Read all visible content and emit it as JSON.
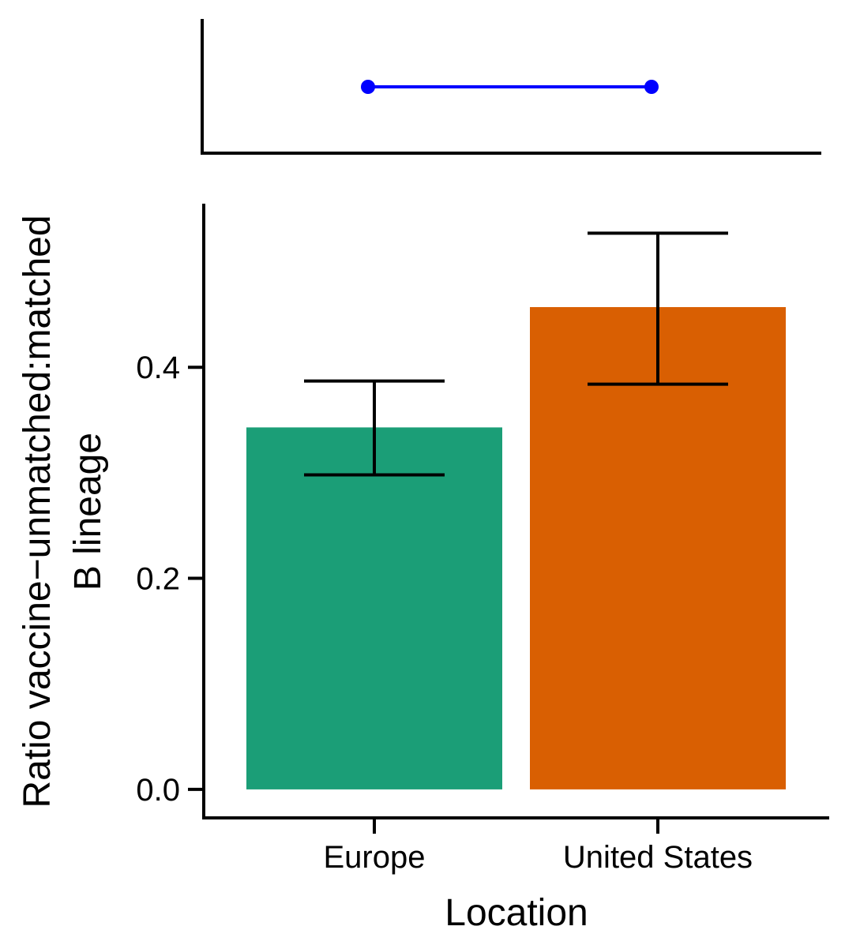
{
  "chart_data": [
    {
      "panel": "comparison",
      "type": "line",
      "x": [
        "Europe",
        "United States"
      ],
      "y": [
        1,
        1
      ],
      "line_color": "#0000FF",
      "point_color": "#0000FF",
      "show_y_ticks": false,
      "show_x_ticks": false
    },
    {
      "panel": "main",
      "type": "bar",
      "categories": [
        "Europe",
        "United States"
      ],
      "values": [
        0.343,
        0.457
      ],
      "error_low": [
        0.298,
        0.384
      ],
      "error_high": [
        0.387,
        0.527
      ],
      "colors": [
        "#1B9E77",
        "#D95F02"
      ],
      "xlabel": "Location",
      "ylabel_lines": [
        "Ratio vaccine−unmatched:matched",
        "B lineage"
      ],
      "yticks": [
        "0.0",
        "0.2",
        "0.4"
      ],
      "ylim": [
        -0.027,
        0.555
      ],
      "grid": false,
      "legend": "none"
    }
  ]
}
